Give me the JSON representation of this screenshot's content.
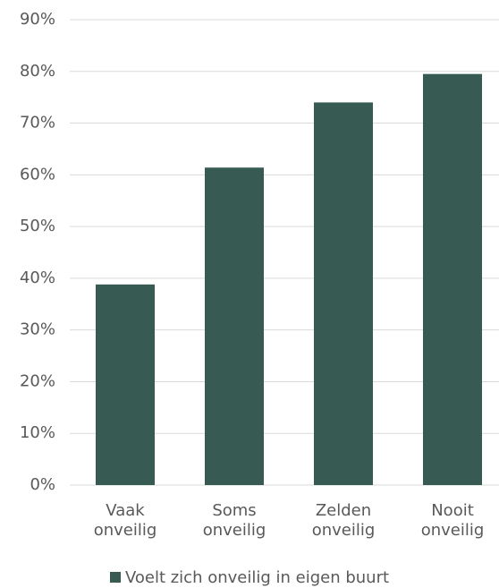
{
  "chart_data": {
    "type": "bar",
    "categories": [
      "Vaak onveilig",
      "Soms onveilig",
      "Zelden onveilig",
      "Nooit onveilig"
    ],
    "series": [
      {
        "name": "Voelt zich onveilig in eigen buurt",
        "color": "#375a52",
        "values": [
          38.8,
          61.4,
          74.0,
          79.5
        ]
      }
    ],
    "ylim": [
      0,
      90
    ],
    "yticks": [
      {
        "value": 0,
        "label": "0%"
      },
      {
        "value": 10,
        "label": "10%"
      },
      {
        "value": 20,
        "label": "20%"
      },
      {
        "value": 30,
        "label": "30%"
      },
      {
        "value": 40,
        "label": "40%"
      },
      {
        "value": 50,
        "label": "50%"
      },
      {
        "value": 60,
        "label": "60%"
      },
      {
        "value": 70,
        "label": "70%"
      },
      {
        "value": 80,
        "label": "80%"
      },
      {
        "value": 90,
        "label": "90%"
      }
    ],
    "grid": true,
    "legend": "bottom"
  }
}
